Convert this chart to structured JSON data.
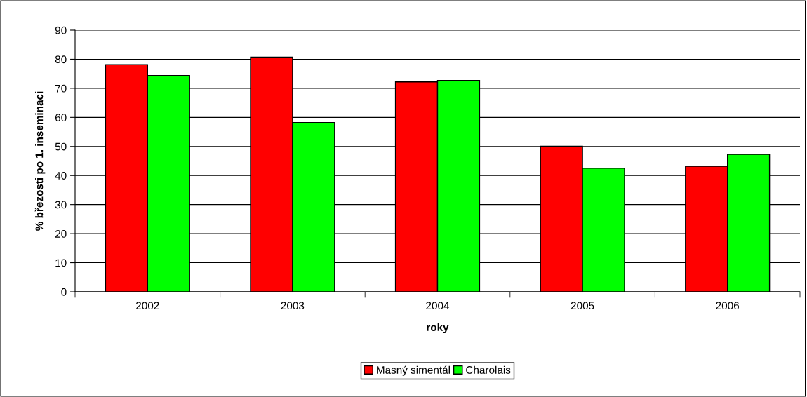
{
  "chart_data": {
    "type": "bar",
    "xlabel": "roky",
    "ylabel": "% březosti po 1. inseminaci",
    "categories": [
      "2002",
      "2003",
      "2004",
      "2005",
      "2006"
    ],
    "series": [
      {
        "name": "Masný simentál",
        "color": "#ff0000",
        "values": [
          78.1,
          80.7,
          72.2,
          50.1,
          43.2
        ]
      },
      {
        "name": "Charolais",
        "color": "#00ff00",
        "values": [
          74.4,
          58.2,
          72.7,
          42.5,
          47.3
        ]
      }
    ],
    "ylim": [
      0,
      90
    ],
    "yticks": [
      0,
      10,
      20,
      30,
      40,
      50,
      60,
      70,
      80,
      90
    ],
    "grid": "y",
    "legend": "bottom"
  }
}
